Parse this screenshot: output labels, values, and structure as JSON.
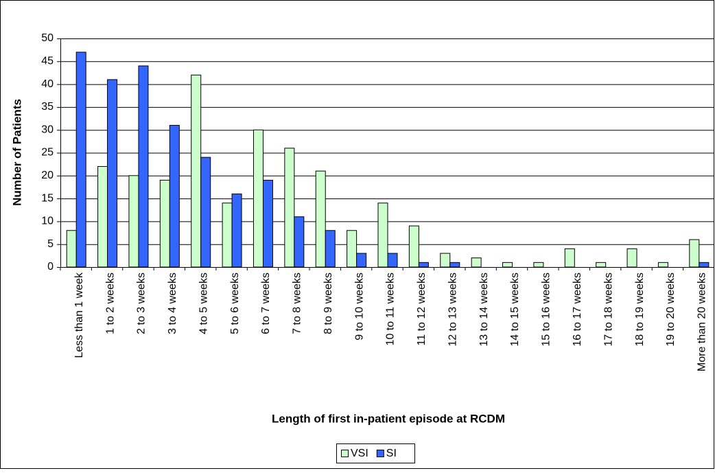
{
  "chart_data": {
    "type": "bar",
    "y_label": "Number of Patients",
    "x_label": "Length of first in-patient episode at RCDM",
    "categories": [
      "Less than 1 week",
      "1 to 2 weeks",
      "2 to 3 weeks",
      "3 to 4 weeks",
      "4 to 5 weeks",
      "5 to 6 weeks",
      "6 to 7 weeks",
      "7 to 8 weeks",
      "8 to 9 weeks",
      "9 to 10 weeks",
      "10 to 11 weeks",
      "11 to 12 weeks",
      "12 to 13 weeks",
      "13 to 14 weeks",
      "14 to 15 weeks",
      "15 to 16 weeks",
      "16 to 17 weeks",
      "17 to 18 weeks",
      "18 to 19 weeks",
      "19 to 20 weeks",
      "More than 20 weeks"
    ],
    "series": [
      {
        "name": "VSI",
        "color": "#ccffcc",
        "values": [
          8,
          22,
          20,
          19,
          42,
          14,
          30,
          26,
          21,
          8,
          14,
          9,
          3,
          2,
          1,
          1,
          4,
          1,
          4,
          1,
          6
        ]
      },
      {
        "name": "SI",
        "color": "#3366ff",
        "values": [
          47,
          41,
          44,
          31,
          24,
          16,
          19,
          11,
          8,
          3,
          3,
          1,
          1,
          0,
          0,
          0,
          0,
          0,
          0,
          0,
          1
        ]
      }
    ],
    "ylim": [
      0,
      50
    ],
    "yticks": [
      0,
      5,
      10,
      15,
      20,
      25,
      30,
      35,
      40,
      45,
      50
    ],
    "grid": true,
    "legend": "bottom"
  }
}
